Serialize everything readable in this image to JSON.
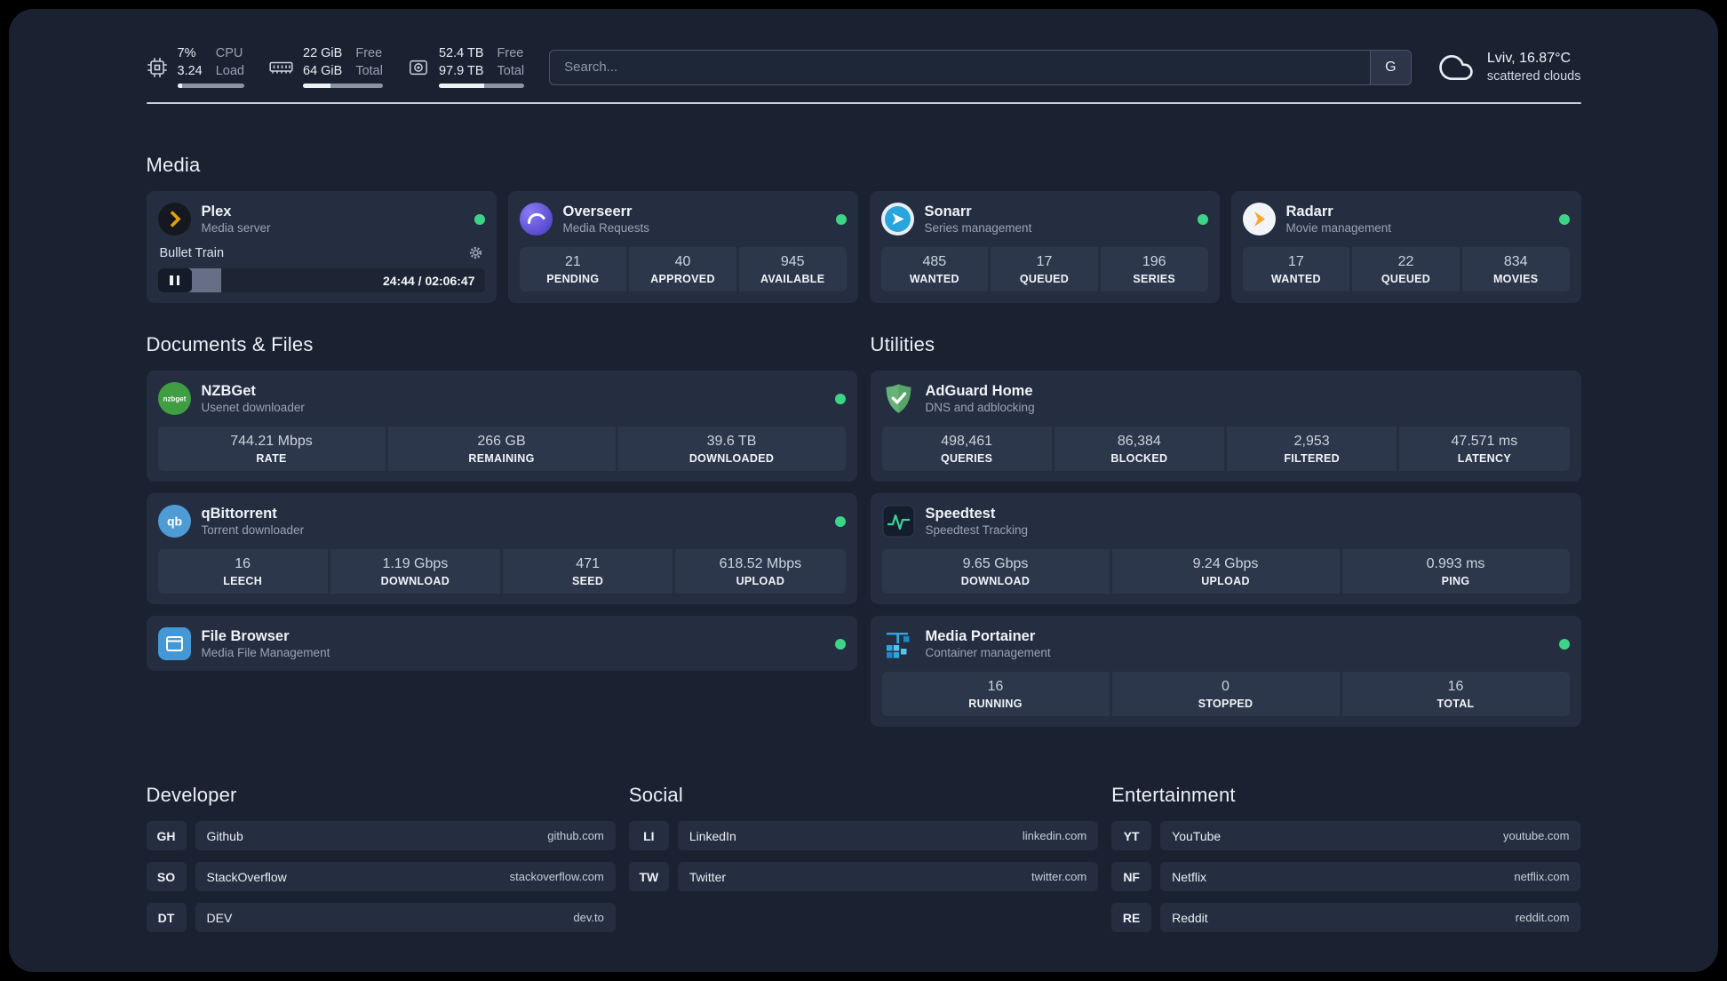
{
  "colors": {
    "status_online": "#3ed488",
    "background": "#1a2232",
    "card": "#252e40",
    "tile": "#2d374b",
    "plex_amber": "#e5a00d",
    "adguard_green": "#67b279",
    "speedtest_green": "#34d399",
    "portainer_blue": "#2ea7e0"
  },
  "header": {
    "cpu": {
      "value": "7%",
      "load": "3.24",
      "label_top": "CPU",
      "label_bottom": "Load",
      "bar_percent": 7
    },
    "memory": {
      "free": "22 GiB",
      "total": "64 GiB",
      "label_top": "Free",
      "label_bottom": "Total",
      "bar_percent": 34
    },
    "disk": {
      "free": "52.4 TB",
      "total": "97.9 TB",
      "label_top": "Free",
      "label_bottom": "Total",
      "bar_percent": 53
    },
    "search": {
      "placeholder": "Search...",
      "button_label": "G"
    },
    "weather": {
      "location": "Lviv, 16.87°C",
      "condition": "scattered clouds"
    }
  },
  "media": {
    "title": "Media",
    "plex": {
      "name": "Plex",
      "subtitle": "Media server",
      "now_playing": "Bullet Train",
      "time": "24:44 / 02:06:47",
      "progress_percent": 19.5
    },
    "overseerr": {
      "name": "Overseerr",
      "subtitle": "Media Requests",
      "stats": [
        {
          "value": "21",
          "label": "PENDING"
        },
        {
          "value": "40",
          "label": "APPROVED"
        },
        {
          "value": "945",
          "label": "AVAILABLE"
        }
      ]
    },
    "sonarr": {
      "name": "Sonarr",
      "subtitle": "Series management",
      "stats": [
        {
          "value": "485",
          "label": "WANTED"
        },
        {
          "value": "17",
          "label": "QUEUED"
        },
        {
          "value": "196",
          "label": "SERIES"
        }
      ]
    },
    "radarr": {
      "name": "Radarr",
      "subtitle": "Movie management",
      "stats": [
        {
          "value": "17",
          "label": "WANTED"
        },
        {
          "value": "22",
          "label": "QUEUED"
        },
        {
          "value": "834",
          "label": "MOVIES"
        }
      ]
    }
  },
  "documents": {
    "title": "Documents & Files",
    "nzbget": {
      "name": "NZBGet",
      "subtitle": "Usenet downloader",
      "stats": [
        {
          "value": "744.21 Mbps",
          "label": "RATE"
        },
        {
          "value": "266 GB",
          "label": "REMAINING"
        },
        {
          "value": "39.6 TB",
          "label": "DOWNLOADED"
        }
      ]
    },
    "qbittorrent": {
      "name": "qBittorrent",
      "subtitle": "Torrent downloader",
      "stats": [
        {
          "value": "16",
          "label": "LEECH"
        },
        {
          "value": "1.19 Gbps",
          "label": "DOWNLOAD"
        },
        {
          "value": "471",
          "label": "SEED"
        },
        {
          "value": "618.52 Mbps",
          "label": "UPLOAD"
        }
      ]
    },
    "filebrowser": {
      "name": "File Browser",
      "subtitle": "Media File Management"
    }
  },
  "utilities": {
    "title": "Utilities",
    "adguard": {
      "name": "AdGuard Home",
      "subtitle": "DNS and adblocking",
      "stats": [
        {
          "value": "498,461",
          "label": "QUERIES"
        },
        {
          "value": "86,384",
          "label": "BLOCKED"
        },
        {
          "value": "2,953",
          "label": "FILTERED"
        },
        {
          "value": "47.571 ms",
          "label": "LATENCY"
        }
      ]
    },
    "speedtest": {
      "name": "Speedtest",
      "subtitle": "Speedtest Tracking",
      "stats": [
        {
          "value": "9.65 Gbps",
          "label": "DOWNLOAD"
        },
        {
          "value": "9.24 Gbps",
          "label": "UPLOAD"
        },
        {
          "value": "0.993 ms",
          "label": "PING"
        }
      ]
    },
    "portainer": {
      "name": "Media Portainer",
      "subtitle": "Container management",
      "stats": [
        {
          "value": "16",
          "label": "RUNNING"
        },
        {
          "value": "0",
          "label": "STOPPED"
        },
        {
          "value": "16",
          "label": "TOTAL"
        }
      ]
    }
  },
  "developer": {
    "title": "Developer",
    "links": [
      {
        "abbr": "GH",
        "name": "Github",
        "url": "github.com"
      },
      {
        "abbr": "SO",
        "name": "StackOverflow",
        "url": "stackoverflow.com"
      },
      {
        "abbr": "DT",
        "name": "DEV",
        "url": "dev.to"
      }
    ]
  },
  "social": {
    "title": "Social",
    "links": [
      {
        "abbr": "LI",
        "name": "LinkedIn",
        "url": "linkedin.com"
      },
      {
        "abbr": "TW",
        "name": "Twitter",
        "url": "twitter.com"
      }
    ]
  },
  "entertainment": {
    "title": "Entertainment",
    "links": [
      {
        "abbr": "YT",
        "name": "YouTube",
        "url": "youtube.com"
      },
      {
        "abbr": "NF",
        "name": "Netflix",
        "url": "netflix.com"
      },
      {
        "abbr": "RE",
        "name": "Reddit",
        "url": "reddit.com"
      }
    ]
  }
}
